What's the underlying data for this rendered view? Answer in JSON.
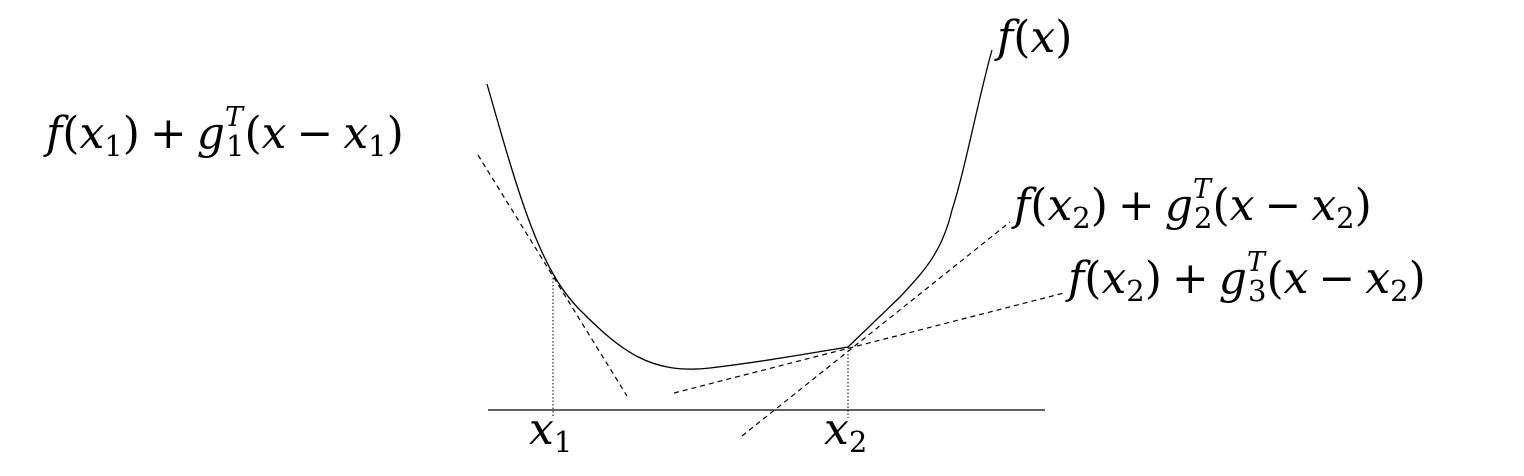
{
  "diagram": {
    "function_label": {
      "f": "f",
      "open": "(",
      "x": "x",
      "close": ")"
    },
    "tangent_1": {
      "f": "f",
      "open1": "(",
      "x": "x",
      "x_sub": "1",
      "close1": ")",
      "plus": "+",
      "g": "g",
      "g_sub": "1",
      "g_sup": "T",
      "open2": "(",
      "x2": "x",
      "minus": "−",
      "x3": "x",
      "x3_sub": "1",
      "close2": ")"
    },
    "tangent_2": {
      "f": "f",
      "open1": "(",
      "x": "x",
      "x_sub": "2",
      "close1": ")",
      "plus": "+",
      "g": "g",
      "g_sub": "2",
      "g_sup": "T",
      "open2": "(",
      "x2": "x",
      "minus": "−",
      "x3": "x",
      "x3_sub": "2",
      "close2": ")"
    },
    "tangent_3": {
      "f": "f",
      "open1": "(",
      "x": "x",
      "x_sub": "2",
      "close1": ")",
      "plus": "+",
      "g": "g",
      "g_sub": "3",
      "g_sup": "T",
      "open2": "(",
      "x2": "x",
      "minus": "−",
      "x3": "x",
      "x3_sub": "2",
      "close2": ")"
    },
    "tick_x1": {
      "x": "x",
      "sub": "1"
    },
    "tick_x2": {
      "x": "x",
      "sub": "2"
    }
  }
}
